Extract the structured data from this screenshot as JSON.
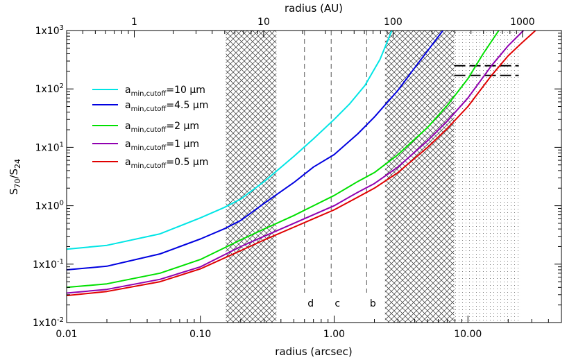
{
  "chart_data": {
    "type": "line",
    "xlabel": "radius (arcsec)",
    "top_xlabel": "radius (AU)",
    "ylabel": "S",
    "ylabel_sub1": "70",
    "ylabel_slash": "/S",
    "ylabel_sub2": "24",
    "xscale": "log",
    "yscale": "log",
    "xlim": [
      0.01,
      50
    ],
    "ylim": [
      0.01,
      1000
    ],
    "top_xlim": [
      0.3,
      2000
    ],
    "x_ticks": [
      {
        "v": 0.01,
        "label": "0.01"
      },
      {
        "v": 0.1,
        "label": "0.10"
      },
      {
        "v": 1,
        "label": "1.00"
      },
      {
        "v": 10,
        "label": "10.00"
      }
    ],
    "top_x_ticks": [
      {
        "v": 1,
        "label": "1"
      },
      {
        "v": 10,
        "label": "10"
      },
      {
        "v": 100,
        "label": "100"
      },
      {
        "v": 1000,
        "label": "1000"
      }
    ],
    "y_ticks": [
      {
        "v": 0.01,
        "mant": "1x10",
        "exp": "-2"
      },
      {
        "v": 0.1,
        "mant": "1x10",
        "exp": "-1"
      },
      {
        "v": 1,
        "mant": "1x10",
        "exp": "0"
      },
      {
        "v": 10,
        "mant": "1x10",
        "exp": "1"
      },
      {
        "v": 100,
        "mant": "1x10",
        "exp": "2"
      },
      {
        "v": 1000,
        "mant": "1x10",
        "exp": "3"
      }
    ],
    "hatched_regions": [
      {
        "x0": 0.155,
        "x1": 0.37,
        "style": "crosshatch"
      },
      {
        "x0": 2.4,
        "x1": 7.9,
        "style": "crosshatch"
      },
      {
        "x0": 7.9,
        "x1": 25,
        "style": "dotted"
      }
    ],
    "vertical_markers": [
      {
        "x": 0.6,
        "label": "d"
      },
      {
        "x": 0.95,
        "label": "c"
      },
      {
        "x": 1.75,
        "label": "b"
      }
    ],
    "observed_limits": {
      "x0": 7.9,
      "x1": 24,
      "y": [
        250,
        170
      ]
    },
    "series": [
      {
        "name_main": "a",
        "name_sub": "min,cutoff",
        "name_rest": "=10 μm",
        "color": "#00e5e5",
        "x": [
          0.01,
          0.02,
          0.05,
          0.1,
          0.15,
          0.2,
          0.3,
          0.5,
          0.7,
          1.0,
          1.3,
          1.7,
          2.2,
          2.7
        ],
        "y": [
          0.18,
          0.21,
          0.33,
          0.62,
          0.93,
          1.3,
          2.6,
          7.0,
          14,
          30,
          55,
          115,
          320,
          1000
        ]
      },
      {
        "name_main": "a",
        "name_sub": "min,cutoff",
        "name_rest": "=4.5 μm",
        "color": "#0000e0",
        "x": [
          0.01,
          0.02,
          0.05,
          0.1,
          0.15,
          0.2,
          0.3,
          0.5,
          0.7,
          1.0,
          1.5,
          2.0,
          3.0,
          4.0,
          5.0,
          6.5
        ],
        "y": [
          0.08,
          0.092,
          0.15,
          0.27,
          0.4,
          0.56,
          1.1,
          2.5,
          4.6,
          7.5,
          17,
          33,
          95,
          230,
          450,
          1000
        ]
      },
      {
        "name_main": "a",
        "name_sub": "min,cutoff",
        "name_rest": "=2 μm",
        "color": "#00e000",
        "x": [
          0.01,
          0.02,
          0.05,
          0.1,
          0.2,
          0.3,
          0.5,
          0.7,
          1.0,
          1.5,
          2.0,
          3.0,
          5.0,
          7.0,
          10.0,
          13.0,
          17.0
        ],
        "y": [
          0.04,
          0.046,
          0.07,
          0.12,
          0.26,
          0.4,
          0.68,
          1.0,
          1.5,
          2.6,
          3.7,
          7.5,
          22,
          52,
          150,
          400,
          1000
        ]
      },
      {
        "name_main": "a",
        "name_sub": "min,cutoff",
        "name_rest": "=1 μm",
        "color": "#9000b0",
        "x": [
          0.01,
          0.02,
          0.05,
          0.1,
          0.2,
          0.3,
          0.5,
          0.7,
          1.0,
          1.5,
          2.0,
          3.0,
          5.0,
          7.0,
          10.0,
          15.0,
          20.0,
          26.0
        ],
        "y": [
          0.032,
          0.037,
          0.055,
          0.09,
          0.2,
          0.3,
          0.5,
          0.7,
          1.0,
          1.7,
          2.4,
          4.6,
          13,
          28,
          70,
          250,
          550,
          1000
        ]
      },
      {
        "name_main": "a",
        "name_sub": "min,cutoff",
        "name_rest": "=0.5 μm",
        "color": "#e00000",
        "x": [
          0.01,
          0.02,
          0.05,
          0.1,
          0.2,
          0.3,
          0.5,
          0.7,
          1.0,
          1.5,
          2.0,
          3.0,
          5.0,
          7.0,
          10.0,
          15.0,
          20.0,
          25.0,
          32.0
        ],
        "y": [
          0.029,
          0.034,
          0.05,
          0.083,
          0.17,
          0.26,
          0.43,
          0.6,
          0.85,
          1.4,
          2.0,
          3.7,
          10,
          21,
          50,
          170,
          370,
          600,
          1000
        ]
      }
    ]
  }
}
